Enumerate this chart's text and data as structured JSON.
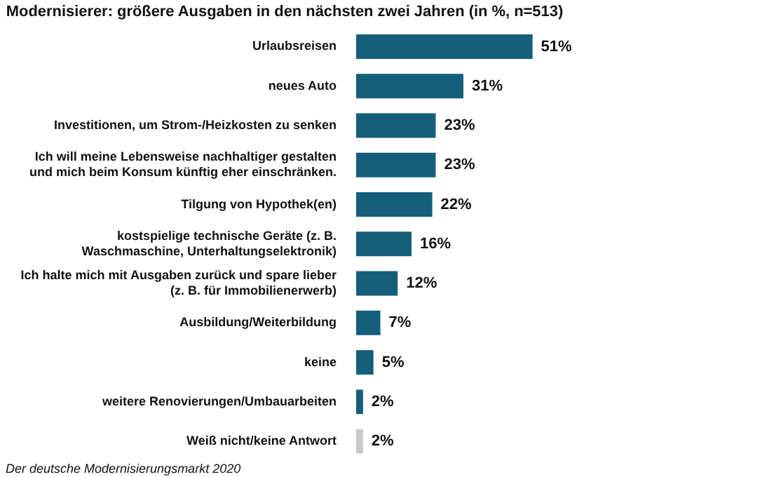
{
  "chart_data": {
    "type": "bar",
    "orientation": "horizontal",
    "title": "Modernisierer: größere Ausgaben in den nächsten zwei Jahren (in %, n=513)",
    "categories": [
      "Urlaubsreisen",
      "neues Auto",
      "Investitionen, um Strom-/Heizkosten zu senken",
      "Ich will meine Lebensweise nachhaltiger gestalten\nund mich beim Konsum künftig eher einschränken.",
      "Tilgung von Hypothek(en)",
      "kostspielige technische Geräte (z. B.\nWaschmaschine, Unterhaltungselektronik)",
      "Ich halte mich mit Ausgaben zurück und spare lieber\n(z. B. für Immobilienerwerb)",
      "Ausbildung/Weiterbildung",
      "keine",
      "weitere Renovierungen/Umbauarbeiten",
      "Weiß nicht/keine Antwort"
    ],
    "values": [
      51,
      31,
      23,
      23,
      22,
      16,
      12,
      7,
      5,
      2,
      2
    ],
    "colors": [
      "#135f7c",
      "#135f7c",
      "#135f7c",
      "#135f7c",
      "#135f7c",
      "#135f7c",
      "#135f7c",
      "#135f7c",
      "#135f7c",
      "#135f7c",
      "#c9c9c9"
    ],
    "value_labels": [
      "51%",
      "31%",
      "23%",
      "23%",
      "22%",
      "16%",
      "12%",
      "7%",
      "5%",
      "2%",
      "2%"
    ],
    "annotations": [
      "Der deutsche Modernisierungsmarkt 2020"
    ],
    "legend": false
  }
}
